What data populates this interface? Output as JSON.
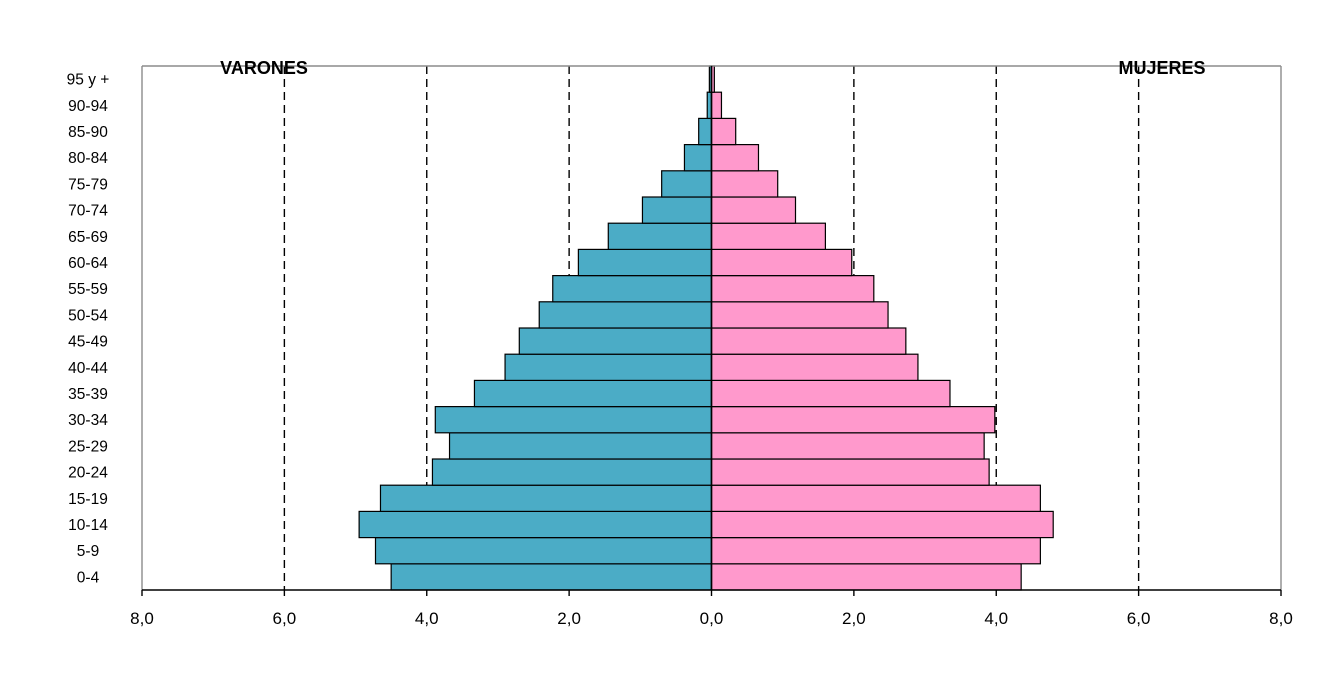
{
  "chart_data": {
    "type": "bar",
    "orientation": "horizontal",
    "style": "population-pyramid",
    "left_label": "VARONES",
    "right_label": "MUJERES",
    "categories": [
      "0-4",
      "5-9",
      "10-14",
      "15-19",
      "20-24",
      "25-29",
      "30-34",
      "35-39",
      "40-44",
      "45-49",
      "50-54",
      "55-59",
      "60-64",
      "65-69",
      "70-74",
      "75-79",
      "80-84",
      "85-90",
      "90-94",
      "95 y +"
    ],
    "series": [
      {
        "name": "VARONES",
        "side": "left",
        "color": "#4BACC6",
        "values": [
          4.5,
          4.72,
          4.95,
          4.65,
          3.92,
          3.68,
          3.88,
          3.33,
          2.9,
          2.7,
          2.42,
          2.23,
          1.87,
          1.45,
          0.97,
          0.7,
          0.38,
          0.18,
          0.06,
          0.03
        ]
      },
      {
        "name": "MUJERES",
        "side": "right",
        "color": "#FF99CC",
        "values": [
          4.35,
          4.62,
          4.8,
          4.62,
          3.9,
          3.83,
          3.98,
          3.35,
          2.9,
          2.73,
          2.48,
          2.28,
          1.97,
          1.6,
          1.18,
          0.93,
          0.66,
          0.34,
          0.14,
          0.04
        ]
      }
    ],
    "xlim": [
      -8,
      8
    ],
    "x_ticks": [
      "8,0",
      "6,0",
      "4,0",
      "2,0",
      "0,0",
      "2,0",
      "4,0",
      "6,0",
      "8,0"
    ],
    "x_tick_values": [
      -8,
      -6,
      -4,
      -2,
      0,
      2,
      4,
      6,
      8
    ],
    "grid": "vertical dashed",
    "legend": "none"
  }
}
